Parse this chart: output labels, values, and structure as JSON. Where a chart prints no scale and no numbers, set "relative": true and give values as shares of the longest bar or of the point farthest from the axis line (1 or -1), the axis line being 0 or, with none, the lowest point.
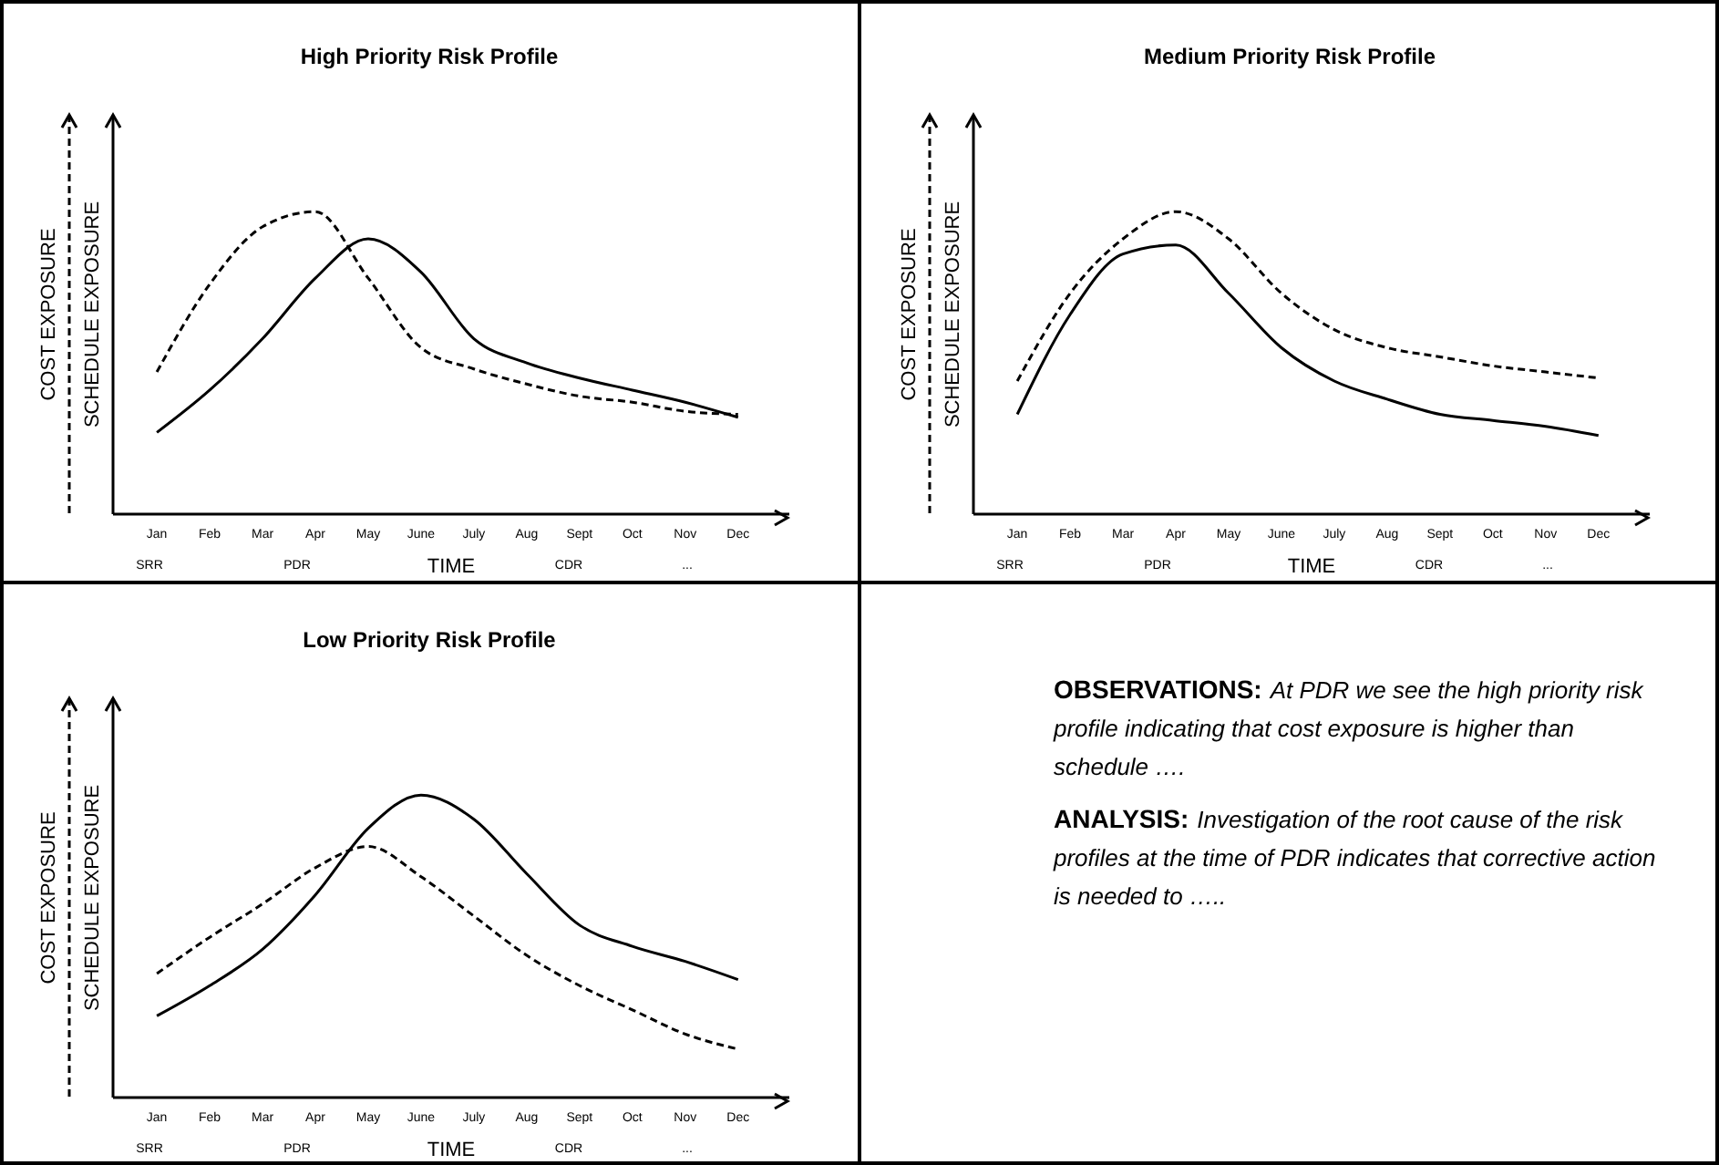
{
  "chart_data": [
    {
      "type": "line",
      "title": "High Priority Risk Profile",
      "xlabel": "TIME",
      "ylabel": "COST  EXPOSURE",
      "y2label": "SCHEDULE  EXPOSURE",
      "relative": true,
      "categories": [
        "Jan",
        "Feb",
        "Mar",
        "Apr",
        "May",
        "June",
        "July",
        "Aug",
        "Sept",
        "Oct",
        "Nov",
        "Dec"
      ],
      "series": [
        {
          "color": "#000000",
          "line_style": "dashed",
          "values": [
            0.47,
            0.76,
            0.95,
            1.0,
            0.78,
            0.55,
            0.48,
            0.43,
            0.39,
            0.37,
            0.34,
            0.33
          ]
        },
        {
          "color": "#000000",
          "line_style": "solid",
          "values": [
            0.27,
            0.41,
            0.58,
            0.78,
            0.91,
            0.8,
            0.58,
            0.5,
            0.45,
            0.41,
            0.37,
            0.32
          ]
        }
      ],
      "annotations": [
        "SRR",
        "PDR",
        "CDR",
        "..."
      ]
    },
    {
      "type": "line",
      "title": "Medium Priority Risk Profile",
      "xlabel": "TIME",
      "ylabel": "COST  EXPOSURE",
      "y2label": "SCHEDULE  EXPOSURE",
      "relative": true,
      "categories": [
        "Jan",
        "Feb",
        "Mar",
        "Apr",
        "May",
        "June",
        "July",
        "Aug",
        "Sept",
        "Oct",
        "Nov",
        "Dec"
      ],
      "series": [
        {
          "color": "#000000",
          "line_style": "dashed",
          "values": [
            0.44,
            0.73,
            0.91,
            1.0,
            0.91,
            0.73,
            0.61,
            0.55,
            0.52,
            0.49,
            0.47,
            0.45
          ]
        },
        {
          "color": "#000000",
          "line_style": "solid",
          "values": [
            0.33,
            0.66,
            0.86,
            0.89,
            0.73,
            0.55,
            0.44,
            0.38,
            0.33,
            0.31,
            0.29,
            0.26
          ]
        }
      ],
      "annotations": [
        "SRR",
        "PDR",
        "CDR",
        "..."
      ]
    },
    {
      "type": "line",
      "title": "Low Priority Risk Profile",
      "xlabel": "TIME",
      "ylabel": "COST  EXPOSURE",
      "y2label": "SCHEDULE  EXPOSURE",
      "relative": true,
      "categories": [
        "Jan",
        "Feb",
        "Mar",
        "Apr",
        "May",
        "June",
        "July",
        "Aug",
        "Sept",
        "Oct",
        "Nov",
        "Dec"
      ],
      "series": [
        {
          "color": "#000000",
          "line_style": "dashed",
          "values": [
            0.41,
            0.53,
            0.64,
            0.76,
            0.83,
            0.73,
            0.6,
            0.47,
            0.37,
            0.29,
            0.21,
            0.16
          ]
        },
        {
          "color": "#000000",
          "line_style": "solid",
          "values": [
            0.27,
            0.37,
            0.49,
            0.67,
            0.89,
            1.0,
            0.92,
            0.74,
            0.57,
            0.5,
            0.45,
            0.39
          ]
        }
      ],
      "annotations": [
        "SRR",
        "PDR",
        "CDR",
        "..."
      ]
    },
    {
      "type": "other",
      "annotations": [
        "OBSERVATIONS:",
        "At PDR we see the high priority risk profile indicating that cost exposure is higher than schedule ….",
        "ANALYSIS:",
        "Investigation of the root cause of the risk profiles at the time of PDR indicates that corrective action is needed to ….."
      ]
    }
  ]
}
